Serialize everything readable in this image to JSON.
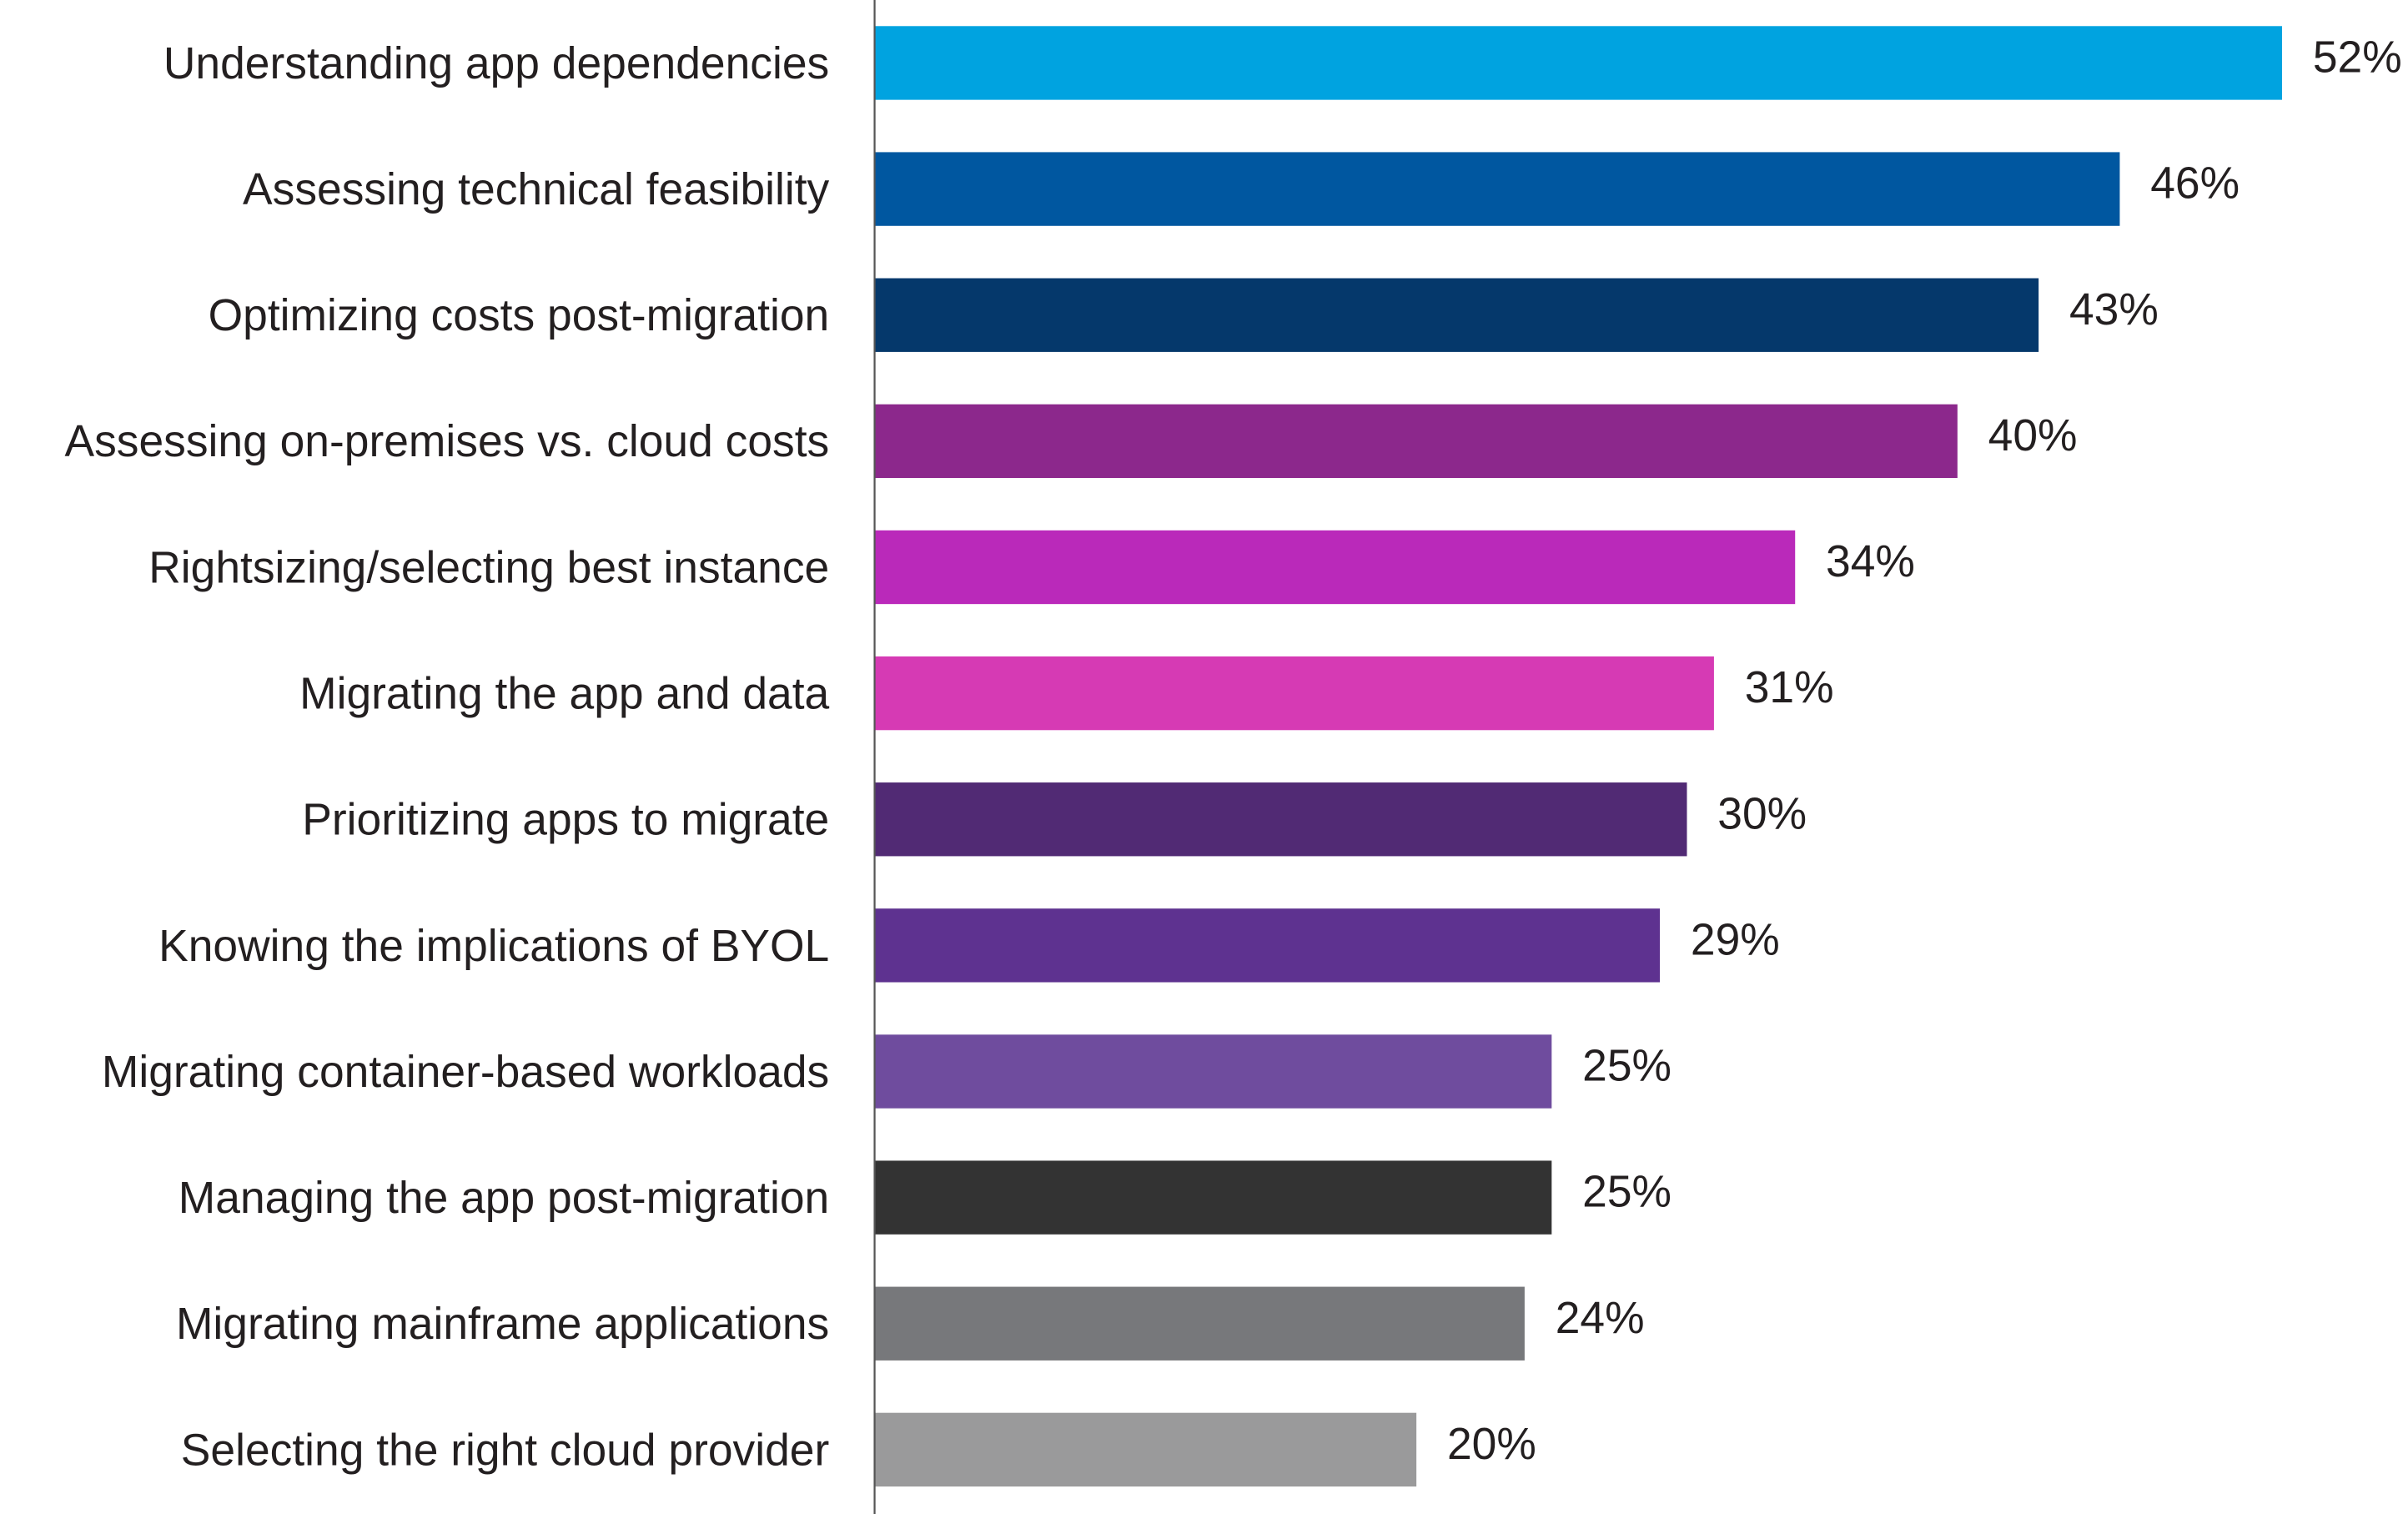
{
  "chart_data": {
    "type": "bar",
    "orientation": "horizontal",
    "title": "",
    "xlabel": "",
    "ylabel": "",
    "xlim": [
      0,
      52
    ],
    "grid": false,
    "legend": "none",
    "categories": [
      "Understanding app dependencies",
      "Assessing technical feasibility",
      "Optimizing costs post-migration",
      "Assessing on-premises vs. cloud costs",
      "Rightsizing/selecting best instance",
      "Migrating the app and data",
      "Prioritizing apps to migrate",
      "Knowing the implications of BYOL",
      "Migrating container-based workloads",
      "Managing the app post-migration",
      "Migrating mainframe applications",
      "Selecting the right cloud provider"
    ],
    "values": [
      52,
      46,
      43,
      40,
      34,
      31,
      30,
      29,
      25,
      25,
      24,
      20
    ],
    "labels": [
      "52%",
      "46%",
      "43%",
      "40%",
      "34%",
      "31%",
      "30%",
      "29%",
      "25%",
      "25%",
      "24%",
      "20%"
    ],
    "colors": [
      "#00a3e0",
      "#0057a0",
      "#05386b",
      "#8c288c",
      "#ba29ba",
      "#d63ab4",
      "#512a74",
      "#5e3290",
      "#6f4c9e",
      "#333333",
      "#77787b",
      "#9a9a9b"
    ]
  }
}
